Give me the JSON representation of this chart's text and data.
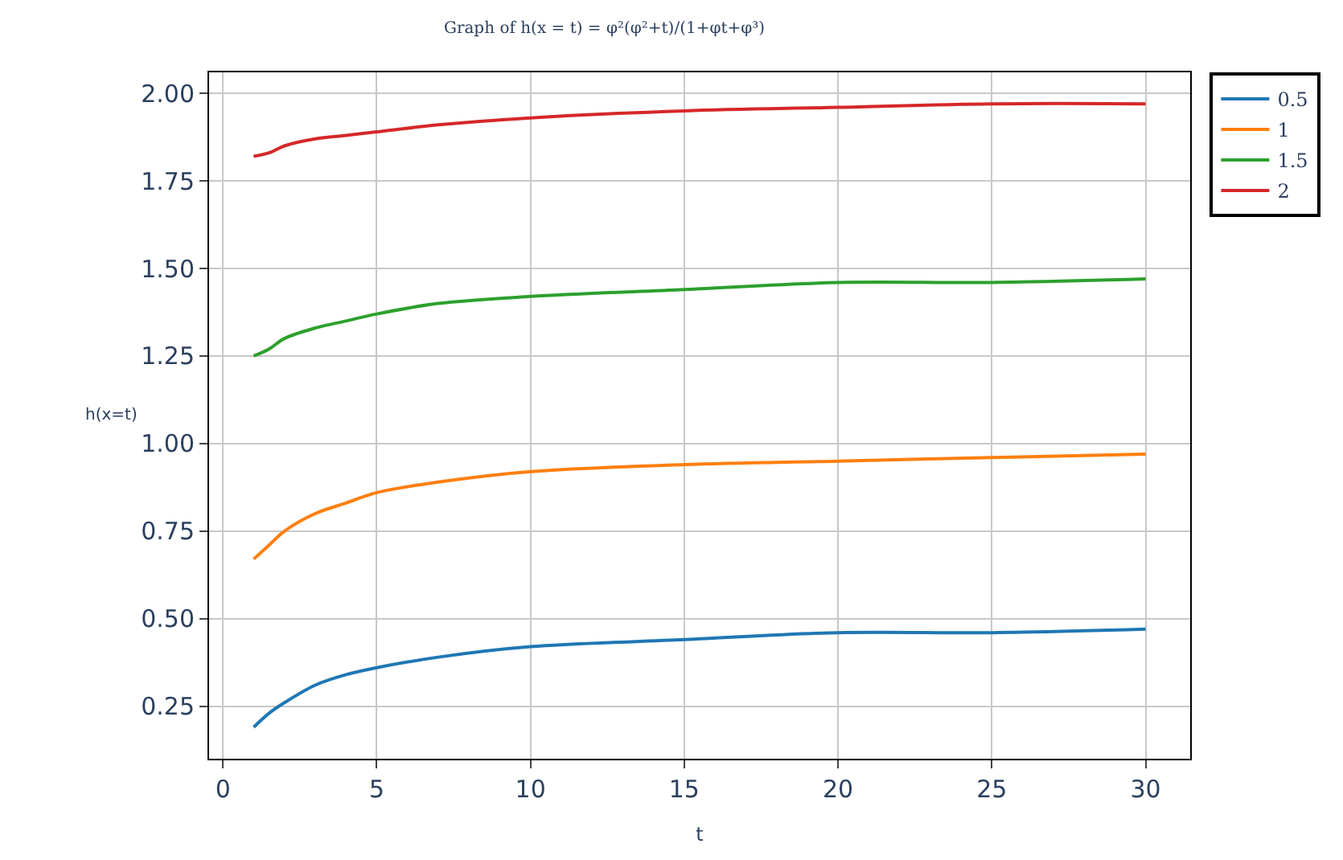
{
  "chart_data": {
    "type": "line",
    "title": "Graph of h(x = t) = φ²(φ²+t)/(1+φt+φ³)",
    "xlabel": "t",
    "ylabel": "h(x=t)",
    "x": [
      1,
      1.5,
      2,
      3,
      4,
      5,
      7,
      10,
      15,
      20,
      25,
      30
    ],
    "series": [
      {
        "name": "0.5",
        "color": "#1f77b4",
        "values": [
          0.19,
          0.23,
          0.26,
          0.31,
          0.34,
          0.36,
          0.39,
          0.42,
          0.44,
          0.46,
          0.46,
          0.47
        ]
      },
      {
        "name": "1",
        "color": "#ff7f0e",
        "values": [
          0.67,
          0.71,
          0.75,
          0.8,
          0.83,
          0.86,
          0.89,
          0.92,
          0.94,
          0.95,
          0.96,
          0.97
        ]
      },
      {
        "name": "1.5",
        "color": "#2ca02c",
        "values": [
          1.25,
          1.27,
          1.3,
          1.33,
          1.35,
          1.37,
          1.4,
          1.42,
          1.44,
          1.46,
          1.46,
          1.47
        ]
      },
      {
        "name": "2",
        "color": "#d62728",
        "values": [
          1.82,
          1.83,
          1.85,
          1.87,
          1.88,
          1.89,
          1.91,
          1.93,
          1.95,
          1.96,
          1.97,
          1.97
        ]
      }
    ],
    "xlim": [
      -0.45,
      31.45
    ],
    "ylim": [
      0.1,
      2.06
    ],
    "xticks": [
      0,
      5,
      10,
      15,
      20,
      25,
      30
    ],
    "yticks": [
      {
        "value": 0.25,
        "label": "0.25"
      },
      {
        "value": 0.5,
        "label": "0.50"
      },
      {
        "value": 0.75,
        "label": "0.75"
      },
      {
        "value": 1.0,
        "label": "1.00"
      },
      {
        "value": 1.25,
        "label": "1.25"
      },
      {
        "value": 1.5,
        "label": "1.50"
      },
      {
        "value": 1.75,
        "label": "1.75"
      },
      {
        "value": 2.0,
        "label": "2.00"
      }
    ],
    "grid": true,
    "legend": "top right",
    "marker": "none",
    "line_style": "solid"
  }
}
